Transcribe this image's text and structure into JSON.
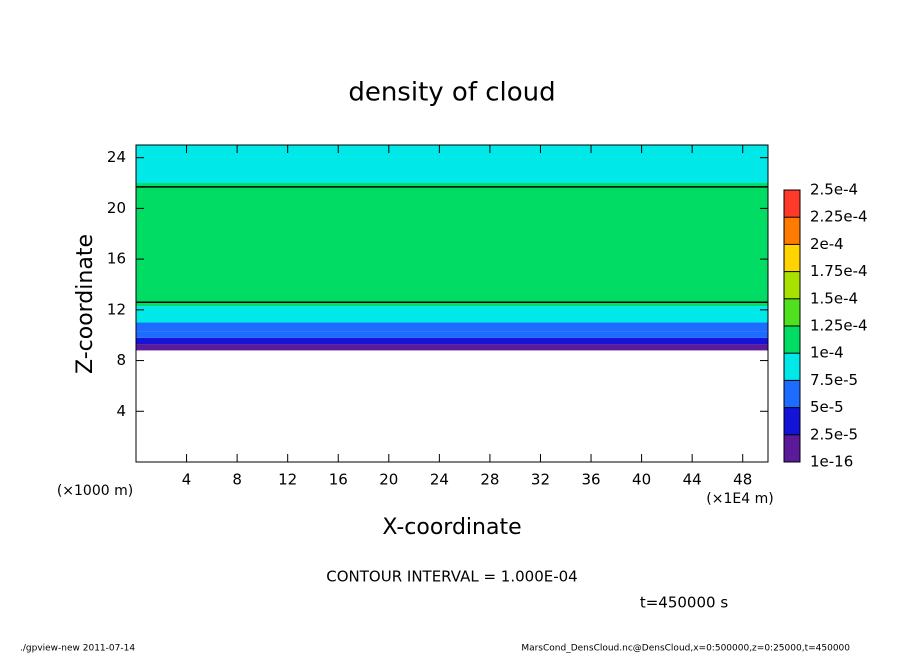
{
  "chart_data": {
    "type": "layers",
    "title": "density of cloud",
    "x_label": "X-coordinate",
    "y_label": "Z-coordinate",
    "y_unit": "(×1000 m)",
    "x_unit": "(×1E4 m)",
    "xlim": [
      0,
      50
    ],
    "ylim": [
      0,
      25
    ],
    "xticks": [
      4,
      8,
      12,
      16,
      20,
      24,
      28,
      32,
      36,
      40,
      44,
      48
    ],
    "yticks": [
      4,
      8,
      12,
      16,
      20,
      24
    ],
    "z_bounds": [
      8.8,
      9.3,
      9.8,
      10.3,
      11.0,
      12.3,
      22.0,
      25.0
    ],
    "values": [
      1e-05,
      3e-05,
      6e-05,
      7e-05,
      8e-05,
      0.00011,
      9e-05
    ],
    "contour_z": [
      12.6,
      21.7
    ],
    "colorbar_levels": [
      {
        "value": 1e-16,
        "label": "1e-16"
      },
      {
        "value": 2.5e-05,
        "label": "2.5e-5"
      },
      {
        "value": 5e-05,
        "label": "5e-5"
      },
      {
        "value": 7.5e-05,
        "label": "7.5e-5"
      },
      {
        "value": 0.0001,
        "label": "1e-4"
      },
      {
        "value": 0.000125,
        "label": "1.25e-4"
      },
      {
        "value": 0.00015,
        "label": "1.5e-4"
      },
      {
        "value": 0.000175,
        "label": "1.75e-4"
      },
      {
        "value": 0.0002,
        "label": "2e-4"
      },
      {
        "value": 0.000225,
        "label": "2.25e-4"
      },
      {
        "value": 0.00025,
        "label": "2.5e-4"
      }
    ],
    "colorbar_colors": [
      "#5a1a9a",
      "#1414d8",
      "#1e6cff",
      "#00e8e8",
      "#00dc64",
      "#50e020",
      "#a8e000",
      "#ffd400",
      "#ff7a00",
      "#ff3a2a"
    ],
    "contour_note": "CONTOUR INTERVAL = 1.000E-04",
    "time_note": "t=450000 s",
    "footer_left": "./gpview-new  2011-07-14",
    "footer_right": "MarsCond_DensCloud.nc@DensCloud,x=0:500000,z=0:25000,t=450000"
  }
}
